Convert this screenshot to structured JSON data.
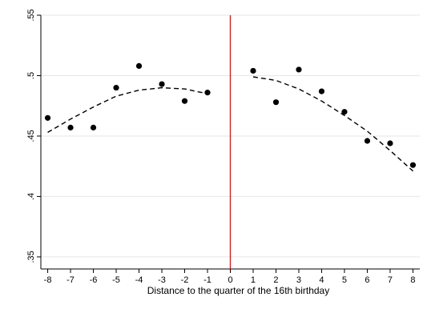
{
  "chart_data": {
    "type": "scatter",
    "xlabel": "Distance to the quarter of the 16th birthday",
    "ylabel": "",
    "x_ticks": [
      -8,
      -7,
      -6,
      -5,
      -4,
      -3,
      -2,
      -1,
      0,
      1,
      2,
      3,
      4,
      5,
      6,
      7,
      8
    ],
    "y_ticks": [
      ".35",
      ".4",
      ".45",
      ".5",
      ".55"
    ],
    "y_tick_values": [
      0.35,
      0.4,
      0.45,
      0.5,
      0.55
    ],
    "xlim": [
      -8.3,
      8.3
    ],
    "ylim": [
      0.34,
      0.55
    ],
    "grid": "horizontal",
    "cutoff_x": 0,
    "colors": {
      "points": "#000000",
      "fit": "#000000",
      "cutoff": "#cc2222",
      "grid": "#e6e6e6"
    },
    "series": [
      {
        "x": [
          -8,
          -7,
          -6,
          -5,
          -4,
          -3,
          -2,
          -1,
          1,
          2,
          3,
          4,
          5,
          6,
          7,
          8
        ],
        "y": [
          0.465,
          0.457,
          0.457,
          0.49,
          0.508,
          0.493,
          0.479,
          0.486,
          0.504,
          0.478,
          0.505,
          0.487,
          0.47,
          0.446,
          0.444,
          0.426
        ]
      }
    ],
    "fit_lines": [
      {
        "x": [
          -8,
          -7,
          -6,
          -5,
          -4,
          -3,
          -2,
          -1
        ],
        "y": [
          0.453,
          0.464,
          0.474,
          0.483,
          0.488,
          0.49,
          0.489,
          0.485
        ]
      },
      {
        "x": [
          1,
          2,
          3,
          4,
          5,
          6,
          7,
          8
        ],
        "y": [
          0.499,
          0.496,
          0.489,
          0.479,
          0.467,
          0.454,
          0.438,
          0.421
        ]
      }
    ]
  }
}
